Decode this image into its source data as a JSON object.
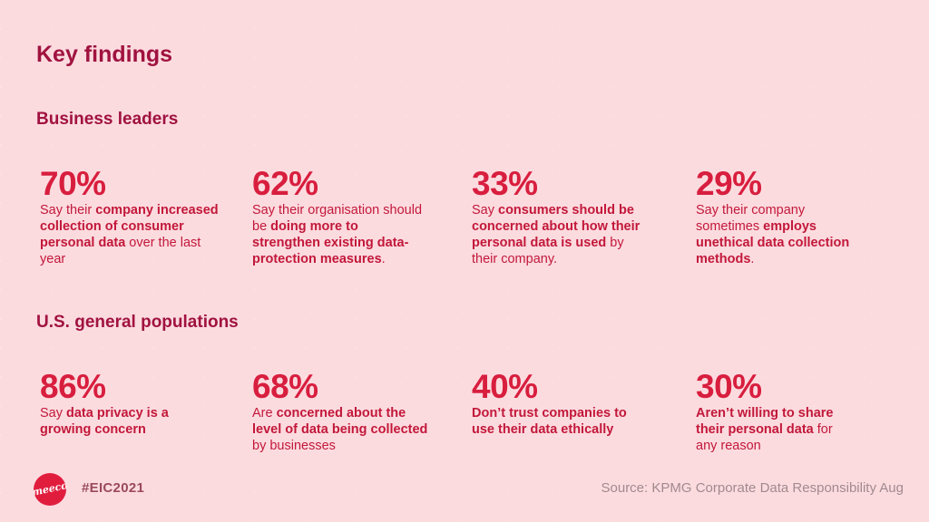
{
  "title": "Key findings",
  "sections": [
    {
      "heading": "Business leaders",
      "stats": [
        {
          "pct": "70%",
          "parts": [
            {
              "t": "Say their ",
              "b": false
            },
            {
              "t": "company increased collection of consumer personal data",
              "b": true
            },
            {
              "t": " over the last year",
              "b": false
            }
          ]
        },
        {
          "pct": "62%",
          "parts": [
            {
              "t": "Say their organisation should be ",
              "b": false
            },
            {
              "t": "doing more to strengthen existing data-protection measures",
              "b": true
            },
            {
              "t": ".",
              "b": false
            }
          ]
        },
        {
          "pct": "33%",
          "parts": [
            {
              "t": "Say ",
              "b": false
            },
            {
              "t": "consumers should be concerned about how their personal data is used",
              "b": true
            },
            {
              "t": " by their company.",
              "b": false
            }
          ]
        },
        {
          "pct": "29%",
          "parts": [
            {
              "t": "Say their company sometimes ",
              "b": false
            },
            {
              "t": "employs unethical data collection methods",
              "b": true
            },
            {
              "t": ".",
              "b": false
            }
          ]
        }
      ]
    },
    {
      "heading": "U.S. general populations",
      "stats": [
        {
          "pct": "86%",
          "parts": [
            {
              "t": "Say ",
              "b": false
            },
            {
              "t": "data privacy is a growing concern",
              "b": true
            }
          ]
        },
        {
          "pct": "68%",
          "parts": [
            {
              "t": "Are ",
              "b": false
            },
            {
              "t": "concerned about the level of data being collected",
              "b": true
            },
            {
              "t": " by businesses",
              "b": false
            }
          ]
        },
        {
          "pct": "40%",
          "parts": [
            {
              "t": "Don’t trust companies to use their data ethically",
              "b": true
            }
          ]
        },
        {
          "pct": "30%",
          "parts": [
            {
              "t": "Aren’t willing to share their personal data",
              "b": true
            },
            {
              "t": " for any reason",
              "b": false
            }
          ]
        }
      ]
    }
  ],
  "footer": {
    "logo_text": "meeco",
    "hashtag": "#EIC2021",
    "source": "Source: KPMG Corporate Data Responsibility Aug"
  },
  "colors": {
    "accent": "#d81e3e",
    "heading": "#a01240",
    "background": "#fcdbdf"
  }
}
